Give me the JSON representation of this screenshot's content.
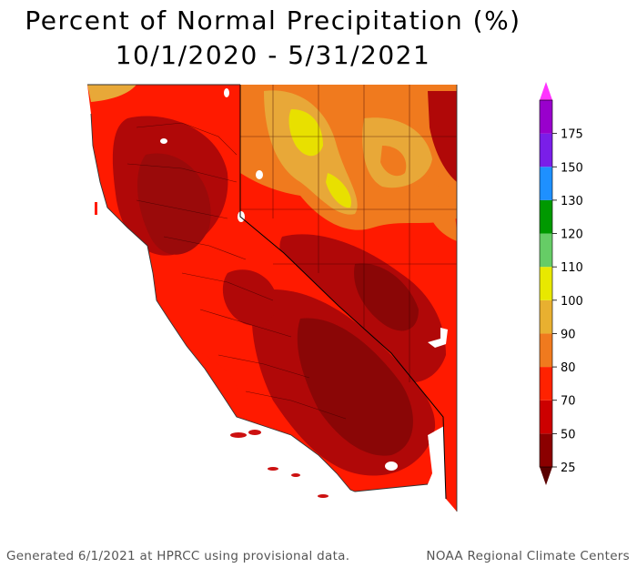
{
  "title": {
    "line1": "Percent of Normal Precipitation (%)",
    "line2": "10/1/2020 - 5/31/2021"
  },
  "legend": {
    "bins": [
      {
        "label": "25",
        "color": "#8b0000"
      },
      {
        "label": "50",
        "color": "#cc0000"
      },
      {
        "label": "70",
        "color": "#ff2200"
      },
      {
        "label": "80",
        "color": "#f07a1e"
      },
      {
        "label": "90",
        "color": "#e8b030"
      },
      {
        "label": "100",
        "color": "#e8e800"
      },
      {
        "label": "110",
        "color": "#66cc66"
      },
      {
        "label": "120",
        "color": "#009900"
      },
      {
        "label": "130",
        "color": "#1e90ff"
      },
      {
        "label": "150",
        "color": "#7a1ee8"
      },
      {
        "label": "175",
        "color": "#9900cc"
      }
    ],
    "top_color": "#ff33ff",
    "bottom_color": "#5a0000"
  },
  "map": {
    "region": "California and Nevada",
    "colors": {
      "deep": "#9a0a0a",
      "mid": "#cc1010",
      "red": "#ff1a00",
      "orange": "#f07a1e",
      "amber": "#e8a838",
      "yellow": "#e8e000",
      "border": "#000000"
    }
  },
  "footer": {
    "left": "Generated 6/1/2021 at HPRCC using provisional data.",
    "right": "NOAA Regional Climate Centers"
  }
}
